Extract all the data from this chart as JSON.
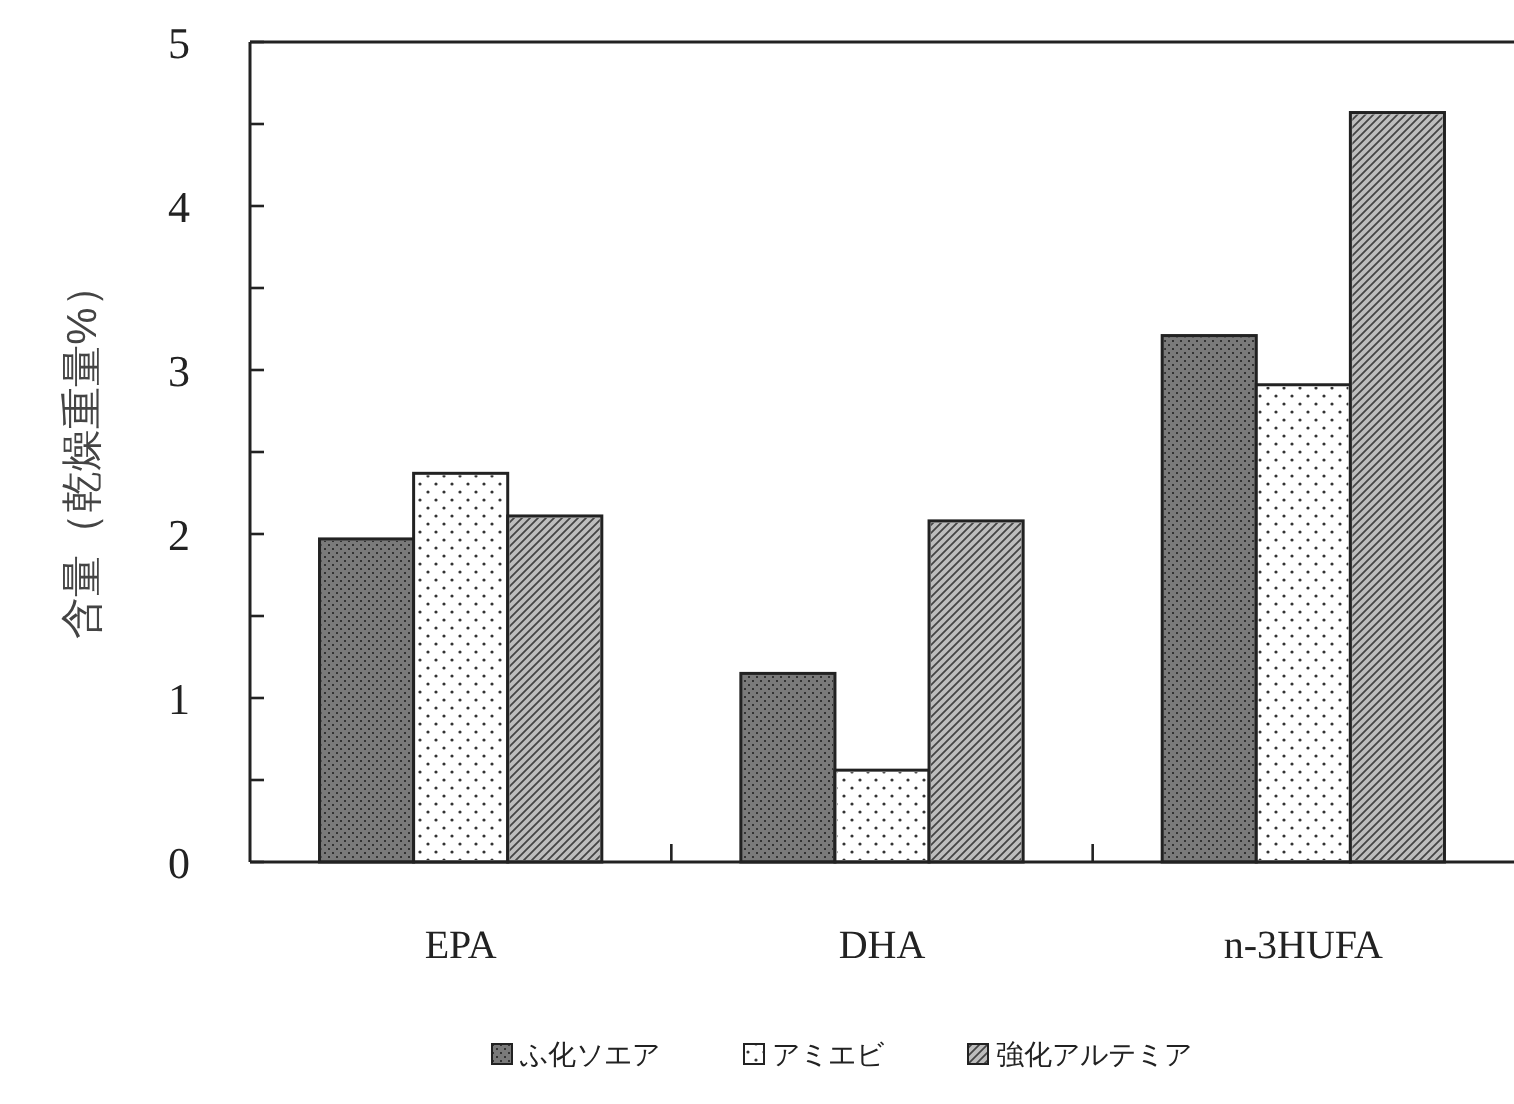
{
  "chart_data": {
    "type": "bar",
    "ylabel": "含量（乾燥重量%）",
    "categories": [
      "EPA",
      "DHA",
      "n-3HUFA"
    ],
    "series": [
      {
        "name": "ふ化ソエア",
        "color": "#7a7a7a",
        "values": [
          1.97,
          1.15,
          3.21
        ]
      },
      {
        "name": "アミエビ",
        "color": "#ffffff",
        "values": [
          2.37,
          0.56,
          2.91
        ]
      },
      {
        "name": "強化アルテミア",
        "color": "#bdbdbd",
        "values": [
          2.11,
          2.08,
          4.57
        ]
      }
    ],
    "ylim": [
      0,
      5
    ],
    "yticks": [
      0,
      {
        "value": 0.5,
        "label": null
      },
      1,
      {
        "value": 1.5,
        "label": null
      },
      2,
      {
        "value": 2.5,
        "label": null
      },
      3,
      {
        "value": 3.5,
        "label": null
      },
      4,
      {
        "value": 4.5,
        "label": null
      },
      5
    ],
    "grid": false,
    "legend": "bottom"
  }
}
